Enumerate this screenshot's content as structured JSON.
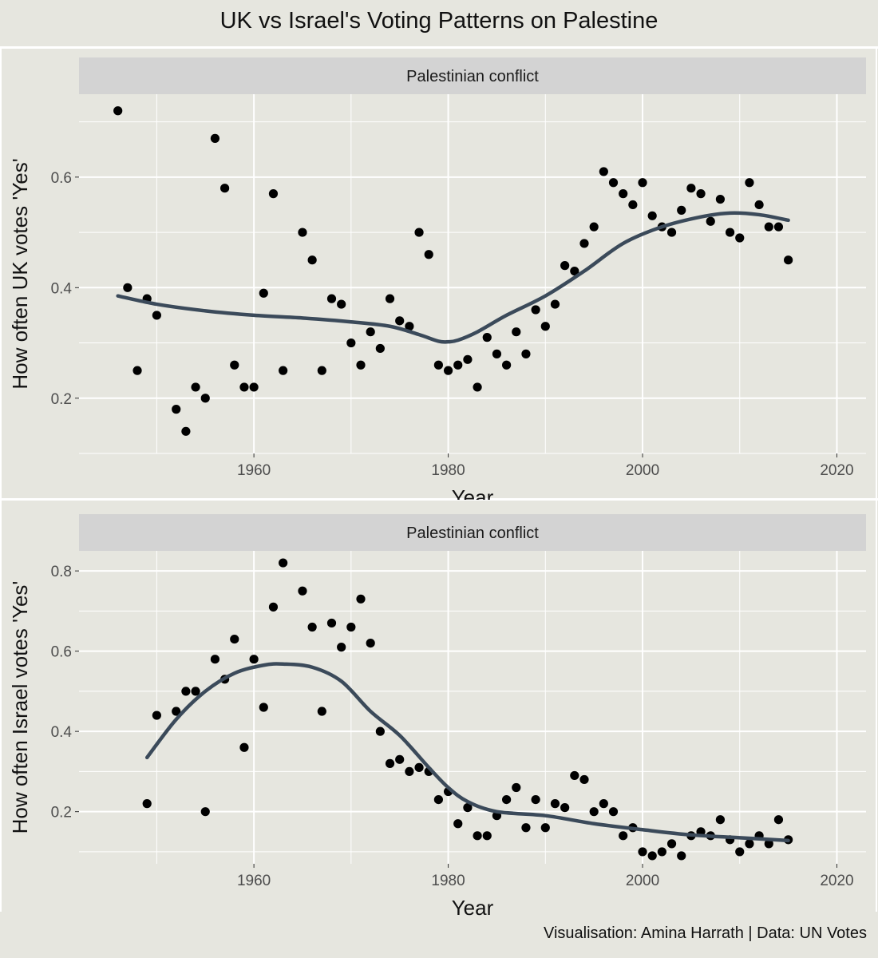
{
  "title": "UK vs Israel's Voting Patterns on Palestine",
  "caption": "Visualisation: Amina Harrath | Data: UN Votes",
  "chart_data": [
    {
      "type": "scatter",
      "facet_label": "Palestinian conflict",
      "xlabel": "Year",
      "ylabel": "How often UK votes 'Yes'",
      "xlim": [
        1942,
        2023
      ],
      "ylim": [
        0.1,
        0.75
      ],
      "xticks": [
        1960,
        1980,
        2000,
        2020
      ],
      "yticks": [
        0.2,
        0.4,
        0.6
      ],
      "points": {
        "x": [
          1946,
          1947,
          1948,
          1949,
          1950,
          1952,
          1953,
          1954,
          1955,
          1956,
          1957,
          1958,
          1959,
          1960,
          1961,
          1962,
          1963,
          1965,
          1966,
          1967,
          1968,
          1969,
          1970,
          1971,
          1972,
          1973,
          1974,
          1975,
          1976,
          1977,
          1978,
          1979,
          1980,
          1981,
          1982,
          1983,
          1984,
          1985,
          1986,
          1987,
          1988,
          1989,
          1990,
          1991,
          1992,
          1993,
          1994,
          1995,
          1996,
          1997,
          1998,
          1999,
          2000,
          2001,
          2002,
          2003,
          2004,
          2005,
          2006,
          2007,
          2008,
          2009,
          2010,
          2011,
          2012,
          2013,
          2014,
          2015
        ],
        "y": [
          0.72,
          0.4,
          0.25,
          0.38,
          0.35,
          0.18,
          0.14,
          0.22,
          0.2,
          0.67,
          0.58,
          0.26,
          0.22,
          0.22,
          0.39,
          0.57,
          0.25,
          0.5,
          0.45,
          0.25,
          0.38,
          0.37,
          0.3,
          0.26,
          0.32,
          0.29,
          0.38,
          0.34,
          0.33,
          0.5,
          0.46,
          0.26,
          0.25,
          0.26,
          0.27,
          0.22,
          0.31,
          0.28,
          0.26,
          0.32,
          0.28,
          0.36,
          0.33,
          0.37,
          0.44,
          0.43,
          0.48,
          0.51,
          0.61,
          0.59,
          0.57,
          0.55,
          0.59,
          0.53,
          0.51,
          0.5,
          0.54,
          0.58,
          0.57,
          0.52,
          0.56,
          0.5,
          0.49,
          0.59,
          0.55,
          0.51,
          0.51,
          0.45
        ]
      },
      "smooth": {
        "x": [
          1946,
          1950,
          1955,
          1960,
          1965,
          1970,
          1974,
          1977,
          1979,
          1980,
          1981,
          1983,
          1986,
          1990,
          1994,
          1998,
          2002,
          2006,
          2009,
          2012,
          2015
        ],
        "y": [
          0.385,
          0.37,
          0.358,
          0.35,
          0.345,
          0.338,
          0.33,
          0.315,
          0.303,
          0.302,
          0.305,
          0.32,
          0.35,
          0.385,
          0.43,
          0.48,
          0.51,
          0.528,
          0.535,
          0.532,
          0.522
        ]
      },
      "smooth_color": "#3b4a5a"
    },
    {
      "type": "scatter",
      "facet_label": "Palestinian conflict",
      "xlabel": "Year",
      "ylabel": "How often Israel votes 'Yes'",
      "xlim": [
        1942,
        2023
      ],
      "ylim": [
        0.07,
        0.85
      ],
      "xticks": [
        1960,
        1980,
        2000,
        2020
      ],
      "yticks": [
        0.2,
        0.4,
        0.6,
        0.8
      ],
      "points": {
        "x": [
          1949,
          1950,
          1952,
          1953,
          1954,
          1955,
          1956,
          1957,
          1958,
          1959,
          1960,
          1961,
          1962,
          1963,
          1965,
          1966,
          1967,
          1968,
          1969,
          1970,
          1971,
          1972,
          1973,
          1974,
          1975,
          1976,
          1977,
          1978,
          1979,
          1980,
          1981,
          1982,
          1983,
          1984,
          1985,
          1986,
          1987,
          1988,
          1989,
          1990,
          1991,
          1992,
          1993,
          1994,
          1995,
          1996,
          1997,
          1998,
          1999,
          2000,
          2001,
          2002,
          2003,
          2004,
          2005,
          2006,
          2007,
          2008,
          2009,
          2010,
          2011,
          2012,
          2013,
          2014,
          2015
        ],
        "y": [
          0.22,
          0.44,
          0.45,
          0.5,
          0.5,
          0.2,
          0.58,
          0.53,
          0.63,
          0.36,
          0.58,
          0.46,
          0.71,
          0.82,
          0.75,
          0.66,
          0.45,
          0.67,
          0.61,
          0.66,
          0.73,
          0.62,
          0.4,
          0.32,
          0.33,
          0.3,
          0.31,
          0.3,
          0.23,
          0.25,
          0.17,
          0.21,
          0.14,
          0.14,
          0.19,
          0.23,
          0.26,
          0.16,
          0.23,
          0.16,
          0.22,
          0.21,
          0.29,
          0.28,
          0.2,
          0.22,
          0.2,
          0.14,
          0.16,
          0.1,
          0.09,
          0.1,
          0.12,
          0.09,
          0.14,
          0.15,
          0.14,
          0.18,
          0.13,
          0.1,
          0.12,
          0.14,
          0.12,
          0.18,
          0.13
        ]
      },
      "smooth": {
        "x": [
          1949,
          1952,
          1955,
          1958,
          1961,
          1963,
          1966,
          1969,
          1972,
          1975,
          1978,
          1980,
          1982,
          1985,
          1990,
          1995,
          2000,
          2005,
          2010,
          2015
        ],
        "y": [
          0.335,
          0.43,
          0.5,
          0.545,
          0.565,
          0.568,
          0.56,
          0.525,
          0.45,
          0.39,
          0.31,
          0.26,
          0.225,
          0.2,
          0.19,
          0.17,
          0.155,
          0.142,
          0.135,
          0.128
        ]
      },
      "smooth_color": "#3b4a5a"
    }
  ]
}
